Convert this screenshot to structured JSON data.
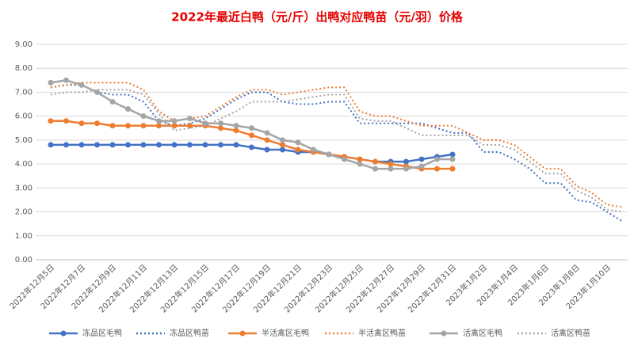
{
  "chart_data": {
    "type": "line",
    "title": "2022年最近白鸭（元/斤）出鸭对应鸭苗（元/羽）价格",
    "categories": [
      "2022年12月5日",
      null,
      "2022年12月7日",
      null,
      "2022年12月9日",
      null,
      "2022年12月11日",
      null,
      "2022年12月13日",
      null,
      "2022年12月15日",
      null,
      "2022年12月17日",
      null,
      "2022年12月19日",
      null,
      "2022年12月21日",
      null,
      "2022年12月23日",
      null,
      "2022年12月25日",
      null,
      "2022年12月27日",
      null,
      "2022年12月29日",
      null,
      "2022年12月31日",
      null,
      "2023年1月2日",
      null,
      "2023年1月4日",
      null,
      "2023年1月6日",
      null,
      "2023年1月8日",
      null,
      "2023年1月10日",
      null
    ],
    "ylim": [
      0,
      9
    ],
    "yticks": [
      {
        "value": 0,
        "label": "0.00"
      },
      {
        "value": 1,
        "label": "1.00"
      },
      {
        "value": 2,
        "label": "2.00"
      },
      {
        "value": 3,
        "label": "3.00"
      },
      {
        "value": 4,
        "label": "4.00"
      },
      {
        "value": 5,
        "label": "5.00"
      },
      {
        "value": 6,
        "label": "6.00"
      },
      {
        "value": 7,
        "label": "7.00"
      },
      {
        "value": 8,
        "label": "8.00"
      },
      {
        "value": 9,
        "label": "9.00"
      }
    ],
    "grid": true,
    "legend": "bottom",
    "series": [
      {
        "name": "冻品区毛鸭",
        "color": "#4472c4",
        "line_style": "solid",
        "values": [
          4.8,
          4.8,
          4.8,
          4.8,
          4.8,
          4.8,
          4.8,
          4.8,
          4.8,
          4.8,
          4.8,
          4.8,
          4.8,
          4.7,
          4.6,
          4.6,
          4.5,
          4.5,
          4.4,
          4.3,
          4.2,
          4.1,
          4.1,
          4.1,
          4.2,
          4.3,
          4.4,
          null,
          null,
          null,
          null,
          null,
          null,
          null,
          null,
          null,
          null,
          null
        ]
      },
      {
        "name": "冻品区鸭苗",
        "color": "#4472c4",
        "line_style": "dotted",
        "values": [
          7.2,
          7.3,
          7.3,
          7.0,
          6.9,
          6.9,
          6.6,
          5.8,
          5.6,
          5.7,
          5.9,
          6.3,
          6.7,
          7.0,
          7.0,
          6.6,
          6.5,
          6.5,
          6.6,
          6.6,
          5.7,
          5.7,
          5.7,
          5.7,
          5.7,
          5.5,
          5.3,
          5.3,
          4.5,
          4.5,
          4.2,
          3.8,
          3.2,
          3.2,
          2.5,
          2.4,
          2.0,
          1.6
        ]
      },
      {
        "name": "半活禽区毛鸭",
        "color": "#ed7d31",
        "line_style": "solid",
        "values": [
          5.8,
          5.8,
          5.7,
          5.7,
          5.6,
          5.6,
          5.6,
          5.6,
          5.6,
          5.6,
          5.6,
          5.5,
          5.4,
          5.2,
          5.0,
          4.8,
          4.6,
          4.5,
          4.4,
          4.3,
          4.2,
          4.1,
          4.0,
          3.9,
          3.8,
          3.8,
          3.8,
          null,
          null,
          null,
          null,
          null,
          null,
          null,
          null,
          null,
          null,
          null
        ]
      },
      {
        "name": "半活禽区鸭苗",
        "color": "#ed7d31",
        "line_style": "dotted",
        "values": [
          7.2,
          7.3,
          7.4,
          7.4,
          7.4,
          7.4,
          7.1,
          6.2,
          5.8,
          5.9,
          6.0,
          6.4,
          6.8,
          7.1,
          7.1,
          6.9,
          7.0,
          7.1,
          7.2,
          7.2,
          6.2,
          6.0,
          6.0,
          5.8,
          5.6,
          5.6,
          5.6,
          5.3,
          5.0,
          5.0,
          4.8,
          4.3,
          3.8,
          3.8,
          3.1,
          2.8,
          2.3,
          2.2
        ]
      },
      {
        "name": "活禽区毛鸭",
        "color": "#a5a5a5",
        "line_style": "solid",
        "values": [
          7.4,
          7.5,
          7.3,
          7.0,
          6.6,
          6.3,
          6.0,
          5.8,
          5.8,
          5.9,
          5.7,
          5.7,
          5.6,
          5.5,
          5.3,
          5.0,
          4.9,
          4.6,
          4.4,
          4.2,
          4.0,
          3.8,
          3.8,
          3.8,
          3.9,
          4.2,
          4.2,
          null,
          null,
          null,
          null,
          null,
          null,
          null,
          null,
          null,
          null,
          null
        ]
      },
      {
        "name": "活禽区鸭苗",
        "color": "#a5a5a5",
        "line_style": "dotted",
        "values": [
          6.9,
          7.0,
          7.0,
          7.1,
          7.1,
          7.1,
          6.9,
          6.1,
          5.4,
          5.5,
          5.6,
          5.9,
          6.2,
          6.6,
          6.6,
          6.6,
          6.7,
          6.8,
          6.9,
          6.9,
          5.9,
          5.8,
          5.8,
          5.5,
          5.2,
          5.2,
          5.2,
          5.2,
          4.8,
          4.8,
          4.6,
          4.1,
          3.6,
          3.6,
          2.9,
          2.6,
          2.1,
          2.0
        ]
      }
    ]
  }
}
